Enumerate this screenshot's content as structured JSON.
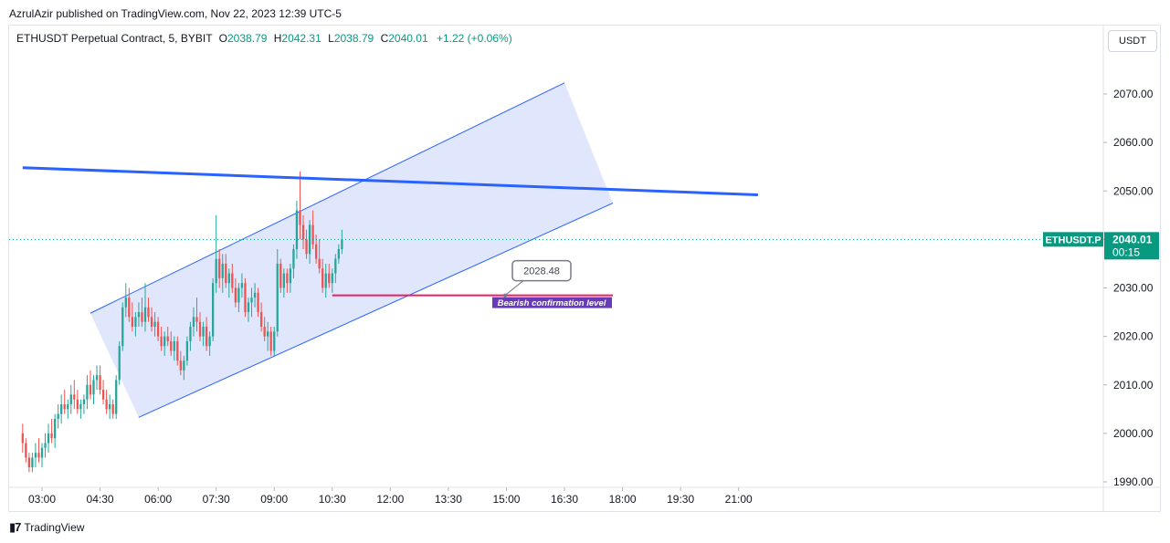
{
  "header": {
    "published": "AzrulAzir published on TradingView.com, Nov 22, 2023 12:39 UTC-5"
  },
  "legend": {
    "symbol": "ETHUSDT Perpetual Contract, 5, BYBIT",
    "o_label": "O",
    "o_value": "2038.79",
    "h_label": "H",
    "h_value": "2042.31",
    "l_label": "L",
    "l_value": "2038.79",
    "c_label": "C",
    "c_value": "2040.01",
    "change": "+1.22 (+0.06%)"
  },
  "currency_button": "USDT",
  "footer": {
    "brand": "TradingView"
  },
  "colors": {
    "up": "#26a69a",
    "down": "#ef5350",
    "channel_fill": "#dbe3fb",
    "channel_line": "#2962ff",
    "trend_line": "#2962ff",
    "bearish_line": "#e91e63",
    "bearish_label_bg": "#673ab7",
    "price_badge": "#089981"
  },
  "chart_data": {
    "type": "candlestick",
    "symbol": "ETHUSDT.P",
    "timeframe": "5",
    "ylim": [
      1988,
      2082
    ],
    "x_ticks": [
      "03:00",
      "04:30",
      "06:00",
      "07:30",
      "09:00",
      "10:30",
      "12:00",
      "13:30",
      "15:00",
      "16:30",
      "18:00",
      "19:30",
      "21:00"
    ],
    "y_ticks": [
      "1990.00",
      "2000.00",
      "2010.00",
      "2020.00",
      "2030.00",
      "2040.00",
      "2050.00",
      "2060.00",
      "2070.00"
    ],
    "last_price": {
      "label": "ETHUSDT.P",
      "value": "2040.01",
      "countdown": "00:15"
    },
    "candles_start": "02:30",
    "candle_interval_min": 5,
    "candles": [
      [
        2000,
        2002,
        1996,
        1998
      ],
      [
        1998,
        1999,
        1994,
        1995
      ],
      [
        1995,
        1996,
        1992,
        1993
      ],
      [
        1993,
        1996,
        1992,
        1995
      ],
      [
        1995,
        1998,
        1993,
        1996
      ],
      [
        1996,
        1999,
        1994,
        1995
      ],
      [
        1995,
        1998,
        1993,
        1997
      ],
      [
        1997,
        2000,
        1995,
        1998
      ],
      [
        1998,
        2002,
        1996,
        2000
      ],
      [
        2000,
        2003,
        1998,
        1999
      ],
      [
        1999,
        2004,
        1997,
        2003
      ],
      [
        2003,
        2006,
        2001,
        2004
      ],
      [
        2004,
        2008,
        2002,
        2006
      ],
      [
        2006,
        2009,
        2004,
        2005
      ],
      [
        2005,
        2007,
        2003,
        2006
      ],
      [
        2006,
        2010,
        2004,
        2008
      ],
      [
        2008,
        2011,
        2005,
        2007
      ],
      [
        2007,
        2009,
        2004,
        2005
      ],
      [
        2005,
        2007,
        2003,
        2006
      ],
      [
        2006,
        2008,
        2004,
        2007
      ],
      [
        2007,
        2012,
        2005,
        2010
      ],
      [
        2010,
        2013,
        2007,
        2008
      ],
      [
        2008,
        2012,
        2006,
        2011
      ],
      [
        2011,
        2014,
        2009,
        2012
      ],
      [
        2012,
        2014,
        2008,
        2009
      ],
      [
        2009,
        2011,
        2006,
        2007
      ],
      [
        2007,
        2009,
        2004,
        2005
      ],
      [
        2005,
        2008,
        2003,
        2006
      ],
      [
        2006,
        2007,
        2003,
        2004
      ],
      [
        2004,
        2012,
        2003,
        2011
      ],
      [
        2011,
        2019,
        2010,
        2018
      ],
      [
        2018,
        2027,
        2017,
        2026
      ],
      [
        2026,
        2031,
        2024,
        2028
      ],
      [
        2028,
        2030,
        2023,
        2024
      ],
      [
        2024,
        2027,
        2021,
        2022
      ],
      [
        2022,
        2025,
        2020,
        2024
      ],
      [
        2024,
        2027,
        2022,
        2025
      ],
      [
        2025,
        2028,
        2022,
        2023
      ],
      [
        2023,
        2031,
        2021,
        2026
      ],
      [
        2026,
        2028,
        2023,
        2024
      ],
      [
        2024,
        2026,
        2021,
        2022
      ],
      [
        2022,
        2025,
        2020,
        2023
      ],
      [
        2023,
        2024,
        2019,
        2020
      ],
      [
        2020,
        2022,
        2017,
        2018
      ],
      [
        2018,
        2021,
        2016,
        2020
      ],
      [
        2020,
        2022,
        2018,
        2019
      ],
      [
        2019,
        2021,
        2016,
        2017
      ],
      [
        2017,
        2020,
        2015,
        2019
      ],
      [
        2019,
        2020,
        2014,
        2015
      ],
      [
        2015,
        2017,
        2012,
        2013
      ],
      [
        2013,
        2016,
        2011,
        2015
      ],
      [
        2015,
        2020,
        2014,
        2019
      ],
      [
        2019,
        2023,
        2017,
        2022
      ],
      [
        2022,
        2026,
        2020,
        2024
      ],
      [
        2024,
        2028,
        2021,
        2023
      ],
      [
        2023,
        2025,
        2019,
        2020
      ],
      [
        2020,
        2023,
        2018,
        2022
      ],
      [
        2022,
        2024,
        2017,
        2018
      ],
      [
        2018,
        2021,
        2016,
        2020
      ],
      [
        2020,
        2032,
        2019,
        2031
      ],
      [
        2031,
        2045,
        2029,
        2036
      ],
      [
        2036,
        2038,
        2030,
        2032
      ],
      [
        2032,
        2037,
        2029,
        2035
      ],
      [
        2035,
        2037,
        2030,
        2031
      ],
      [
        2031,
        2034,
        2028,
        2033
      ],
      [
        2033,
        2035,
        2029,
        2030
      ],
      [
        2030,
        2032,
        2026,
        2027
      ],
      [
        2027,
        2031,
        2025,
        2030
      ],
      [
        2030,
        2033,
        2028,
        2031
      ],
      [
        2031,
        2032,
        2024,
        2025
      ],
      [
        2025,
        2028,
        2023,
        2027
      ],
      [
        2027,
        2030,
        2024,
        2028
      ],
      [
        2028,
        2031,
        2026,
        2029
      ],
      [
        2029,
        2030,
        2024,
        2025
      ],
      [
        2025,
        2027,
        2021,
        2022
      ],
      [
        2022,
        2024,
        2019,
        2020
      ],
      [
        2020,
        2023,
        2017,
        2021
      ],
      [
        2021,
        2022,
        2016,
        2017
      ],
      [
        2017,
        2022,
        2016,
        2021
      ],
      [
        2021,
        2038,
        2020,
        2035
      ],
      [
        2035,
        2036,
        2029,
        2030
      ],
      [
        2030,
        2034,
        2028,
        2033
      ],
      [
        2033,
        2034,
        2029,
        2031
      ],
      [
        2031,
        2035,
        2029,
        2034
      ],
      [
        2034,
        2039,
        2032,
        2038
      ],
      [
        2038,
        2048,
        2036,
        2046
      ],
      [
        2046,
        2054,
        2040,
        2043
      ],
      [
        2043,
        2045,
        2038,
        2040
      ],
      [
        2040,
        2042,
        2036,
        2037
      ],
      [
        2037,
        2044,
        2035,
        2043
      ],
      [
        2043,
        2046,
        2038,
        2039
      ],
      [
        2039,
        2041,
        2035,
        2036
      ],
      [
        2036,
        2040,
        2033,
        2034
      ],
      [
        2034,
        2036,
        2029,
        2030
      ],
      [
        2030,
        2035,
        2028,
        2033
      ],
      [
        2033,
        2035,
        2030,
        2031
      ],
      [
        2031,
        2034,
        2029,
        2033
      ],
      [
        2033,
        2037,
        2031,
        2036
      ],
      [
        2036,
        2039,
        2035,
        2038
      ],
      [
        2038,
        2042,
        2037,
        2040
      ]
    ],
    "annotations": {
      "channel": {
        "upper": [
          [
            "04:15",
            2024.8
          ],
          [
            "16:30",
            2072.3
          ]
        ],
        "lower": [
          [
            "05:30",
            2003.3
          ],
          [
            "17:45",
            2047.5
          ]
        ]
      },
      "trend_line": [
        [
          "02:30",
          2054.8
        ],
        [
          "21:30",
          2049.2
        ]
      ],
      "bearish_level": {
        "price": 2028.48,
        "from": "10:30",
        "to": "17:45",
        "label": "Bearish confirmation level",
        "price_label": "2028.48"
      }
    }
  }
}
